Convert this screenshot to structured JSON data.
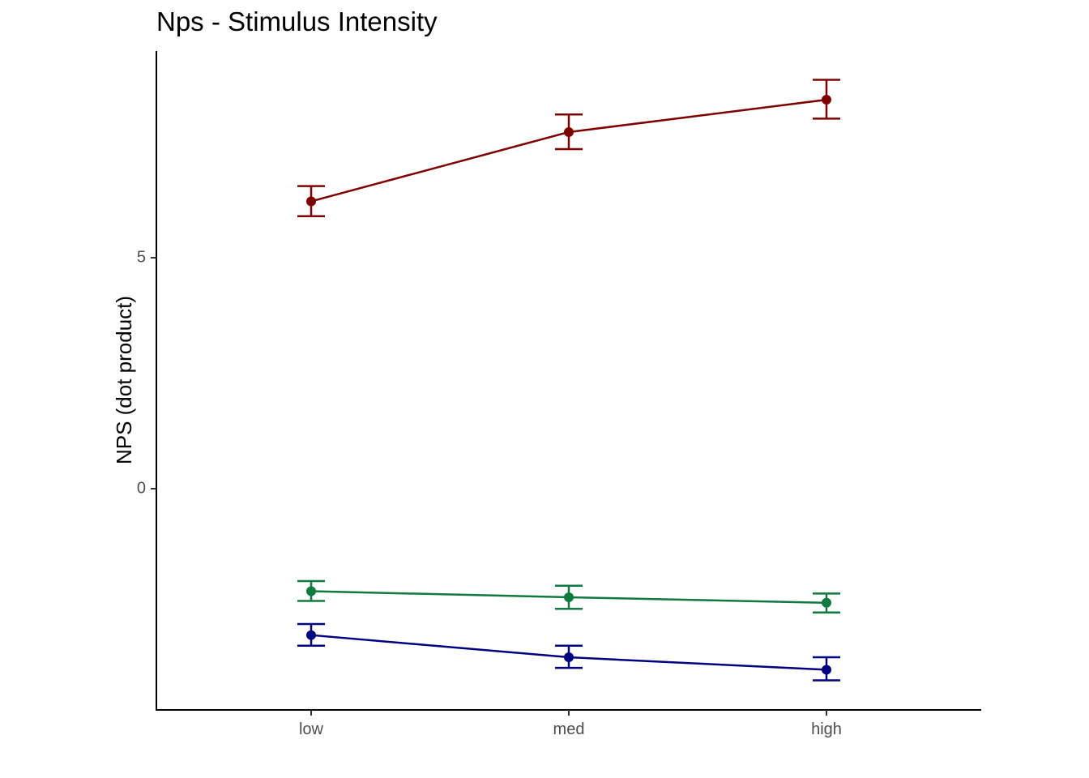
{
  "chart_data": {
    "type": "line",
    "title": "Nps - Stimulus Intensity",
    "xlabel": "",
    "ylabel": "NPS  (dot product)",
    "categories": [
      "low",
      "med",
      "high"
    ],
    "ylim": [
      -4.7,
      9.5
    ],
    "y_ticks": [
      0,
      5
    ],
    "grid": false,
    "legend": "none",
    "series": [
      {
        "color": "#7f0000",
        "values": [
          6.22,
          7.72,
          8.42
        ],
        "lower": [
          5.9,
          7.35,
          8.01
        ],
        "upper": [
          6.55,
          8.1,
          8.85
        ]
      },
      {
        "color": "#0f7a3e",
        "values": [
          -2.22,
          -2.35,
          -2.47
        ],
        "lower": [
          -2.43,
          -2.6,
          -2.68
        ],
        "upper": [
          -2.0,
          -2.1,
          -2.27
        ]
      },
      {
        "color": "#000080",
        "values": [
          -3.17,
          -3.65,
          -3.92
        ],
        "lower": [
          -3.4,
          -3.88,
          -4.15
        ],
        "upper": [
          -2.93,
          -3.4,
          -3.65
        ]
      }
    ]
  }
}
